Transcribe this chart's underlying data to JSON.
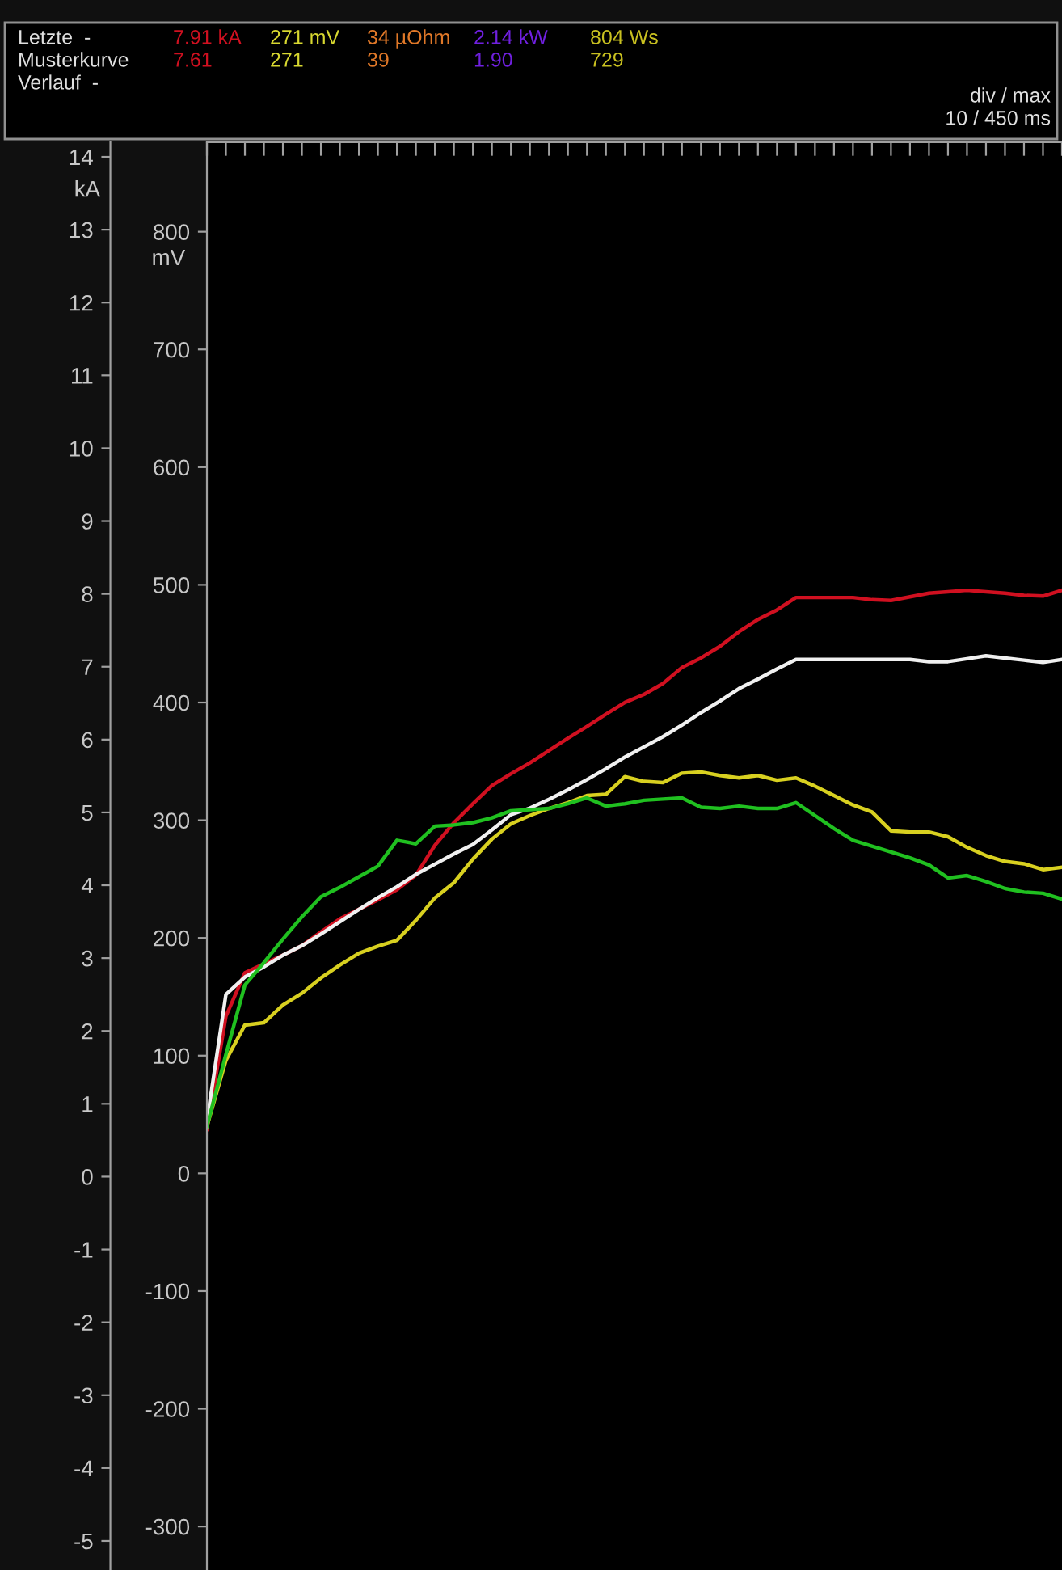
{
  "chart_data": {
    "type": "line",
    "ylabel": "kA",
    "y2label": "mV",
    "annotations": [
      "Letzte  -",
      "7.91 kA",
      "271 mV",
      "34 µOhm",
      "2.14 kW",
      "804 Ws",
      "Musterkurve",
      "7.61",
      "271",
      "39",
      "1.90",
      "729",
      "Verlauf  -",
      "div / max",
      "10 / 450 ms"
    ],
    "categories": [
      null,
      null,
      null,
      null,
      null,
      null,
      null,
      null,
      null,
      null,
      null,
      null,
      null,
      null,
      null,
      null,
      null,
      null,
      null,
      null,
      null,
      null,
      null,
      null,
      null,
      null,
      null,
      null,
      null,
      null,
      null,
      null,
      null,
      null,
      null,
      null,
      null,
      null,
      null,
      null,
      null,
      null,
      null,
      null,
      null,
      null
    ],
    "ylim": [
      -5.4,
      14.2
    ],
    "yticks": [
      -5,
      -4,
      -3,
      -2,
      -1,
      0,
      1,
      2,
      3,
      4,
      5,
      6,
      7,
      8,
      9,
      10,
      11,
      12,
      13,
      14
    ],
    "y2lim": [
      -337,
      876
    ],
    "y2ticks": [
      -300,
      -200,
      -100,
      0,
      100,
      200,
      300,
      400,
      500,
      600,
      700,
      800
    ],
    "tick_labels": "y",
    "grid": false,
    "series": [
      {
        "color": "#d01020",
        "values": [
          0.65,
          2.2,
          2.8,
          2.92,
          3.04,
          3.17,
          3.36,
          3.54,
          3.67,
          3.8,
          3.94,
          4.14,
          4.55,
          4.86,
          5.12,
          5.37,
          5.53,
          5.68,
          5.85,
          6.02,
          6.18,
          6.35,
          6.51,
          6.62,
          6.77,
          6.99,
          7.12,
          7.28,
          7.48,
          7.65,
          7.78,
          7.95,
          7.95,
          7.95,
          7.95,
          7.92,
          7.91,
          7.96,
          8.01,
          8.03,
          8.05,
          8.03,
          8.01,
          7.98,
          7.97,
          8.05
        ]
      },
      {
        "color": "#f0f0f0",
        "values": [
          0.76,
          2.5,
          2.74,
          2.88,
          3.04,
          3.17,
          3.33,
          3.5,
          3.67,
          3.83,
          3.98,
          4.15,
          4.29,
          4.43,
          4.56,
          4.76,
          4.97,
          5.06,
          5.18,
          5.31,
          5.45,
          5.6,
          5.76,
          5.9,
          6.04,
          6.2,
          6.37,
          6.53,
          6.7,
          6.83,
          6.97,
          7.1,
          7.1,
          7.1,
          7.1,
          7.1,
          7.1,
          7.1,
          7.07,
          7.07,
          7.11,
          7.15,
          7.12,
          7.09,
          7.06,
          7.1
        ]
      },
      {
        "color": "#d8d020",
        "axis": "y2",
        "values": [
          40,
          96,
          126,
          128,
          143,
          153,
          166,
          177,
          187,
          193,
          198,
          215,
          234,
          247,
          267,
          284,
          297,
          304,
          310,
          315,
          321,
          322,
          337,
          333,
          332,
          340,
          341,
          338,
          336,
          338,
          334,
          336,
          329,
          321,
          313,
          307,
          291,
          290,
          290,
          286,
          277,
          270,
          265,
          263,
          258,
          260
        ]
      },
      {
        "color": "#20c020",
        "axis": "y2",
        "values": [
          40,
          101,
          160,
          179,
          199,
          218,
          235,
          243,
          252,
          261,
          283,
          280,
          295,
          296,
          298,
          302,
          308,
          309,
          310,
          314,
          319,
          312,
          314,
          317,
          318,
          319,
          311,
          310,
          312,
          310,
          310,
          315,
          304,
          293,
          283,
          278,
          273,
          268,
          262,
          251,
          253,
          248,
          242,
          239,
          238,
          233
        ]
      }
    ]
  }
}
